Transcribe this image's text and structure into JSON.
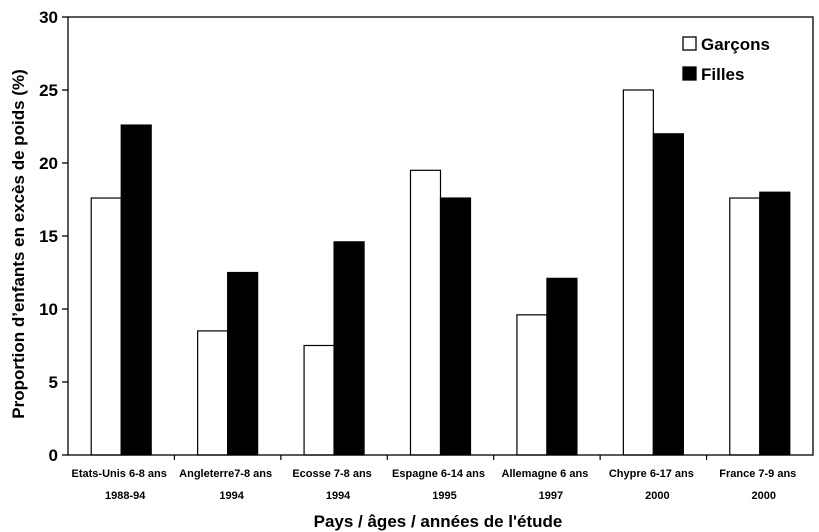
{
  "chart_data": {
    "type": "bar",
    "categories": [
      [
        "Etats-Unis 6-8 ans",
        "1988-94"
      ],
      [
        "Angleterre7-8 ans",
        "1994"
      ],
      [
        "Ecosse 7-8 ans",
        "1994"
      ],
      [
        "Espagne 6-14 ans",
        "1995"
      ],
      [
        "Allemagne 6 ans",
        "1997"
      ],
      [
        "Chypre 6-17 ans",
        "2000"
      ],
      [
        "France  7-9 ans",
        "2000"
      ]
    ],
    "series": [
      {
        "name": "Garçons",
        "color": "#ffffff",
        "values": [
          17.6,
          8.5,
          7.5,
          19.5,
          9.6,
          25.0,
          17.6
        ]
      },
      {
        "name": "Filles",
        "color": "#000000",
        "values": [
          22.6,
          12.5,
          14.6,
          17.6,
          12.1,
          22.0,
          18.0
        ]
      }
    ],
    "ylim": [
      0,
      30
    ],
    "yticks": [
      0,
      5,
      10,
      15,
      20,
      25,
      30
    ],
    "xlabel": "Pays / âges / années de l'étude",
    "ylabel": "Proportion d’enfants en excès de poids (%)",
    "legend_position": "top-right",
    "grid": false
  }
}
